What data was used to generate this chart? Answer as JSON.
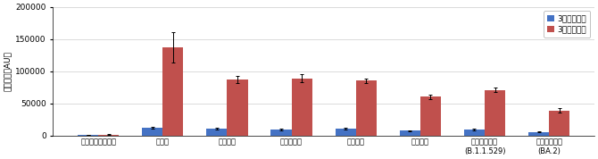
{
  "categories": [
    "ヌクレオカプシド",
    "野生株",
    "デルタ株",
    "カッパー株",
    "ガンマ株",
    "ベータ株",
    "オミクロン株\n(B.1.1.529)",
    "オミクロン株\n(BA.2)"
  ],
  "before": [
    1000,
    12000,
    11000,
    9000,
    11000,
    7500,
    9000,
    5500
  ],
  "after": [
    1500,
    137000,
    87000,
    89000,
    85000,
    60000,
    71000,
    39000
  ],
  "before_err": [
    300,
    1500,
    1200,
    1000,
    1200,
    1000,
    1200,
    800
  ],
  "after_err": [
    300,
    23000,
    5000,
    6500,
    3000,
    4000,
    4000,
    4000
  ],
  "color_before": "#4472c4",
  "color_after": "#c0504d",
  "ylabel": "発光強度（AU）",
  "ylim": [
    0,
    200000
  ],
  "yticks": [
    0,
    50000,
    100000,
    150000,
    200000
  ],
  "legend_before": "3回目接種前",
  "legend_after": "3回目接種後",
  "bar_width": 0.32,
  "figsize": [
    6.7,
    1.78
  ],
  "dpi": 100,
  "bg_color": "#f0f0f0"
}
